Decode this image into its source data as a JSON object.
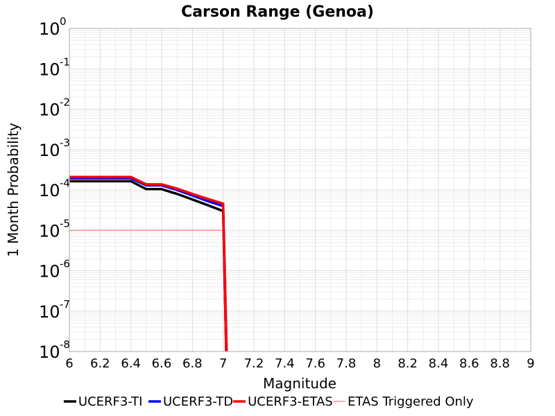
{
  "chart_data": {
    "type": "line",
    "title": "Carson Range (Genoa)",
    "xlabel": "Magnitude",
    "ylabel": "1 Month Probability",
    "xlim": [
      6,
      9
    ],
    "ylim_log10": [
      -8,
      0
    ],
    "yscale": "log",
    "grid": true,
    "legend_position": "bottom",
    "x_ticks": [
      "6",
      "6.2",
      "6.4",
      "6.6",
      "6.8",
      "7",
      "7.2",
      "7.4",
      "7.6",
      "7.8",
      "8",
      "8.2",
      "8.4",
      "8.6",
      "8.8",
      "9"
    ],
    "y_ticks": [
      {
        "base": "10",
        "exp": "0"
      },
      {
        "base": "10",
        "exp": "-1"
      },
      {
        "base": "10",
        "exp": "-2"
      },
      {
        "base": "10",
        "exp": "-3"
      },
      {
        "base": "10",
        "exp": "-4"
      },
      {
        "base": "10",
        "exp": "-5"
      },
      {
        "base": "10",
        "exp": "-6"
      },
      {
        "base": "10",
        "exp": "-7"
      },
      {
        "base": "10",
        "exp": "-8"
      }
    ],
    "series": [
      {
        "name": "ETAS Triggered Only",
        "color": "#ff8080",
        "width": 1.2,
        "x": [
          6.0,
          7.01,
          7.03,
          7.04
        ],
        "y": [
          1e-05,
          1e-05,
          1e-08,
          1e-09
        ]
      },
      {
        "name": "UCERF3-TI",
        "color": "#000000",
        "width": 3.5,
        "x": [
          6.0,
          6.1,
          6.2,
          6.3,
          6.4,
          6.5,
          6.6,
          6.7,
          6.8,
          6.9,
          7.0,
          7.02,
          7.04
        ],
        "y": [
          0.000165,
          0.000165,
          0.000165,
          0.000165,
          0.000165,
          0.000105,
          0.000105,
          8e-05,
          5.8e-05,
          4.2e-05,
          3e-05,
          1e-08,
          1e-09
        ]
      },
      {
        "name": "UCERF3-TD",
        "color": "#0000ff",
        "width": 3.5,
        "x": [
          6.0,
          6.1,
          6.2,
          6.3,
          6.4,
          6.5,
          6.6,
          6.7,
          6.8,
          6.9,
          7.0,
          7.02,
          7.04
        ],
        "y": [
          0.000195,
          0.000195,
          0.000195,
          0.000195,
          0.000195,
          0.00013,
          0.00013,
          0.0001,
          7.3e-05,
          5.3e-05,
          4e-05,
          1e-08,
          1e-09
        ]
      },
      {
        "name": "UCERF3-ETAS",
        "color": "#ff0000",
        "width": 3.5,
        "x": [
          6.0,
          6.1,
          6.2,
          6.3,
          6.4,
          6.5,
          6.6,
          6.7,
          6.8,
          6.9,
          7.0,
          7.02,
          7.04
        ],
        "y": [
          0.00021,
          0.00021,
          0.00021,
          0.00021,
          0.00021,
          0.000138,
          0.000138,
          0.000108,
          8e-05,
          6e-05,
          4.6e-05,
          1e-08,
          1e-09
        ]
      }
    ],
    "legend_order": [
      "UCERF3-TI",
      "UCERF3-TD",
      "UCERF3-ETAS",
      "ETAS Triggered Only"
    ]
  }
}
